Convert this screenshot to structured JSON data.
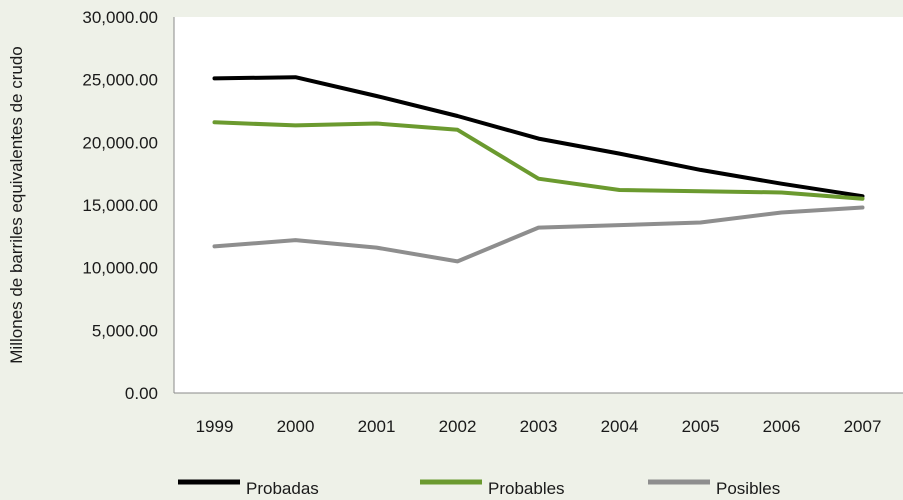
{
  "chart_data": {
    "type": "line",
    "title": "",
    "xlabel": "",
    "ylabel": "Millones de barriles equivalentes de crudo",
    "categories": [
      "1999",
      "2000",
      "2001",
      "2002",
      "2003",
      "2004",
      "2005",
      "2006",
      "2007"
    ],
    "yticks": [
      "0.00",
      "5,000.00",
      "10,000.00",
      "15,000.00",
      "20,000.00",
      "25,000.00",
      "30,000.00"
    ],
    "ylim": [
      0,
      30000
    ],
    "grid": false,
    "legend_position": "bottom",
    "series": [
      {
        "name": "Probadas",
        "color": "#000000",
        "values": [
          25100,
          25200,
          23700,
          22100,
          20300,
          19100,
          17800,
          16700,
          15700
        ]
      },
      {
        "name": "Probables",
        "color": "#6b9a2f",
        "values": [
          21600,
          21350,
          21500,
          21000,
          17100,
          16200,
          16100,
          16000,
          15500
        ]
      },
      {
        "name": "Posibles",
        "color": "#8e8e8e",
        "values": [
          11700,
          12200,
          11600,
          10500,
          13200,
          13400,
          13600,
          14400,
          14800
        ]
      }
    ]
  }
}
